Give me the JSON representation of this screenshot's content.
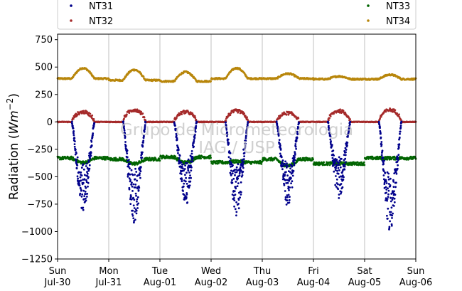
{
  "chart_data": {
    "type": "scatter",
    "ylabel": "Radiation (Wm^-2)",
    "ylim": [
      -1250,
      800
    ],
    "y_ticks": [
      750,
      500,
      250,
      0,
      -250,
      -500,
      -750,
      -1000,
      -1250
    ],
    "x_ticks": [
      {
        "day": "Sun",
        "date": "Jul-30",
        "t": 0
      },
      {
        "day": "Mon",
        "date": "Jul-31",
        "t": 1
      },
      {
        "day": "Tue",
        "date": "Aug-01",
        "t": 2
      },
      {
        "day": "Wed",
        "date": "Aug-02",
        "t": 3
      },
      {
        "day": "Thu",
        "date": "Aug-03",
        "t": 4
      },
      {
        "day": "Fri",
        "date": "Aug-04",
        "t": 5
      },
      {
        "day": "Sat",
        "date": "Aug-05",
        "t": 6
      },
      {
        "day": "Sun",
        "date": "Aug-06",
        "t": 7
      }
    ],
    "xlim": [
      0,
      7
    ],
    "grid": "vertical",
    "legend_position": "top",
    "watermark": [
      "Grupo de Micrometeorologia",
      "IAG / USP"
    ],
    "series": [
      {
        "name": "NT31",
        "color": "#00008b",
        "daily_min": [
          -830,
          -930,
          -760,
          -850,
          -780,
          -700,
          -1010
        ],
        "baseline": 0
      },
      {
        "name": "NT32",
        "color": "#a52a2a",
        "daily_peak": [
          90,
          110,
          90,
          100,
          80,
          100,
          110
        ],
        "baseline": 0
      },
      {
        "name": "NT33",
        "color": "#006400",
        "night_level": [
          -330,
          -340,
          -320,
          -370,
          -340,
          -380,
          -330
        ],
        "day_level": [
          -370,
          -380,
          -370,
          -360,
          -400,
          -380,
          -330
        ]
      },
      {
        "name": "NT34",
        "color": "#b8860b",
        "night_level": [
          395,
          380,
          370,
          395,
          395,
          390,
          390
        ],
        "daily_peak": [
          490,
          475,
          455,
          490,
          440,
          415,
          430
        ]
      }
    ]
  }
}
